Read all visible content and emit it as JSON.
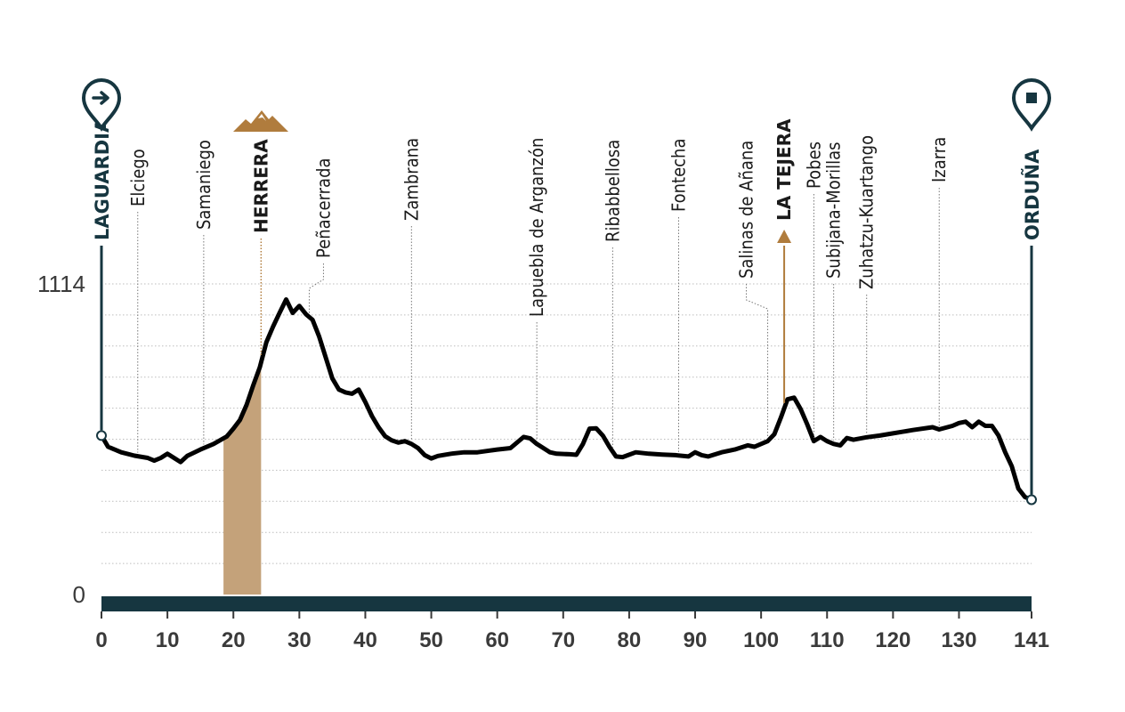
{
  "chart_data": {
    "type": "area",
    "xlim": [
      0,
      141
    ],
    "ylim": [
      0,
      1114
    ],
    "x_ticks": [
      0,
      10,
      20,
      30,
      40,
      50,
      60,
      70,
      80,
      90,
      100,
      110,
      120,
      130,
      141
    ],
    "y_ticks": [
      {
        "value": 1114,
        "label": "1114"
      },
      {
        "value": 0,
        "label": "0"
      }
    ],
    "grid": true,
    "colors": {
      "line": "#000000",
      "axis_bar": "#163640",
      "climb_fill": "#c4a27a",
      "climb_marker": "#b07c3d",
      "grid": "#bdbdbd"
    },
    "profile": [
      [
        0,
        570
      ],
      [
        1,
        530
      ],
      [
        3,
        510
      ],
      [
        5,
        498
      ],
      [
        7,
        490
      ],
      [
        8,
        480
      ],
      [
        9,
        490
      ],
      [
        10,
        505
      ],
      [
        11,
        490
      ],
      [
        12,
        475
      ],
      [
        13,
        497
      ],
      [
        15,
        520
      ],
      [
        17,
        540
      ],
      [
        19,
        567
      ],
      [
        20,
        595
      ],
      [
        21,
        626
      ],
      [
        22,
        680
      ],
      [
        23,
        750
      ],
      [
        24,
        815
      ],
      [
        25,
        905
      ],
      [
        26,
        960
      ],
      [
        27,
        1010
      ],
      [
        28,
        1058
      ],
      [
        29,
        1010
      ],
      [
        30,
        1035
      ],
      [
        31,
        1005
      ],
      [
        32,
        985
      ],
      [
        33,
        925
      ],
      [
        34,
        850
      ],
      [
        35,
        775
      ],
      [
        36,
        735
      ],
      [
        37,
        725
      ],
      [
        38,
        720
      ],
      [
        39,
        735
      ],
      [
        40,
        690
      ],
      [
        41,
        640
      ],
      [
        42,
        600
      ],
      [
        43,
        568
      ],
      [
        44,
        553
      ],
      [
        45,
        545
      ],
      [
        46,
        550
      ],
      [
        47,
        540
      ],
      [
        48,
        525
      ],
      [
        49,
        500
      ],
      [
        50,
        488
      ],
      [
        51,
        497
      ],
      [
        53,
        505
      ],
      [
        55,
        510
      ],
      [
        57,
        510
      ],
      [
        60,
        520
      ],
      [
        62,
        525
      ],
      [
        64,
        565
      ],
      [
        65,
        560
      ],
      [
        66,
        540
      ],
      [
        68,
        510
      ],
      [
        69,
        505
      ],
      [
        71,
        503
      ],
      [
        72,
        501
      ],
      [
        73,
        540
      ],
      [
        74,
        595
      ],
      [
        75,
        596
      ],
      [
        76,
        570
      ],
      [
        77,
        530
      ],
      [
        78,
        495
      ],
      [
        79,
        493
      ],
      [
        81,
        510
      ],
      [
        83,
        505
      ],
      [
        85,
        502
      ],
      [
        87,
        500
      ],
      [
        89,
        495
      ],
      [
        90,
        510
      ],
      [
        91,
        500
      ],
      [
        92,
        495
      ],
      [
        94,
        510
      ],
      [
        96,
        520
      ],
      [
        98,
        535
      ],
      [
        99,
        530
      ],
      [
        101,
        550
      ],
      [
        102,
        575
      ],
      [
        103,
        635
      ],
      [
        104,
        700
      ],
      [
        105,
        706
      ],
      [
        106,
        665
      ],
      [
        107,
        610
      ],
      [
        108,
        550
      ],
      [
        109,
        565
      ],
      [
        110,
        550
      ],
      [
        111,
        540
      ],
      [
        112,
        535
      ],
      [
        113,
        561
      ],
      [
        114,
        555
      ],
      [
        116,
        564
      ],
      [
        118,
        570
      ],
      [
        120,
        578
      ],
      [
        123,
        590
      ],
      [
        126,
        600
      ],
      [
        127,
        592
      ],
      [
        129,
        605
      ],
      [
        130,
        615
      ],
      [
        131,
        620
      ],
      [
        132,
        600
      ],
      [
        133,
        620
      ],
      [
        134,
        605
      ],
      [
        135,
        605
      ],
      [
        136,
        570
      ],
      [
        137,
        510
      ],
      [
        138,
        460
      ],
      [
        139,
        380
      ],
      [
        140,
        350
      ],
      [
        141,
        340
      ]
    ],
    "climb_band": [
      18.5,
      24.2
    ],
    "locations": [
      {
        "name": "Elciego",
        "km": 5.5
      },
      {
        "name": "Samaniego",
        "km": 15.5
      },
      {
        "name": "Peñacerrada",
        "km": 31.5
      },
      {
        "name": "Zambrana",
        "km": 47
      },
      {
        "name": "Lapuebla de Arganzón",
        "km": 66
      },
      {
        "name": "Ribabbellosa",
        "km": 77.5
      },
      {
        "name": "Fontecha",
        "km": 87.5
      },
      {
        "name": "Salinas de Añana",
        "km": 101
      },
      {
        "name": "Pobes",
        "km": 108
      },
      {
        "name": "Subijana-Morillas",
        "km": 111
      },
      {
        "name": "Zuhatzu-Kuartango",
        "km": 116
      },
      {
        "name": "Izarra",
        "km": 127
      }
    ],
    "climbs": [
      {
        "name": "HERRERA",
        "km": 24.2,
        "category": "mountain"
      },
      {
        "name": "LA TEJERA",
        "km": 103.5,
        "category": "minor"
      }
    ],
    "start": {
      "name": "LAGUARDIA",
      "km": 0,
      "icon": "start-arrow-pin-icon"
    },
    "finish": {
      "name": "ORDUÑA",
      "km": 141,
      "icon": "finish-flag-pin-icon"
    }
  }
}
